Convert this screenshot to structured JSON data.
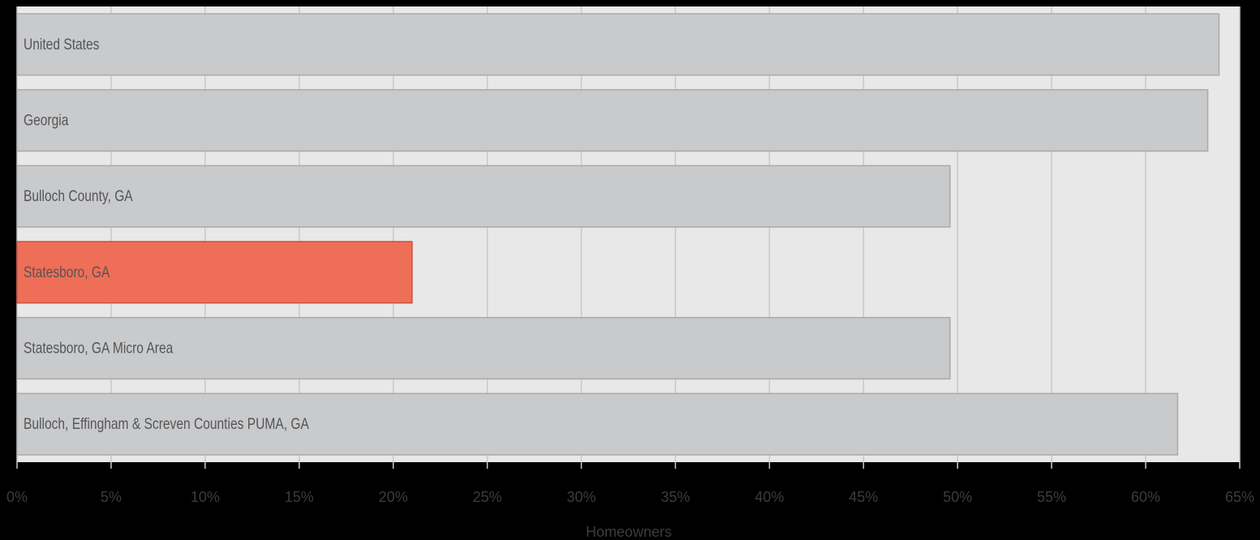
{
  "chart_data": {
    "type": "barh",
    "xlabel": "Homeowners",
    "categories": [
      "United States",
      "Georgia",
      "Bulloch County, GA",
      "Statesboro, GA",
      "Statesboro, GA Micro Area",
      "Bulloch, Effingham & Screven Counties PUMA, GA"
    ],
    "values": [
      63.9,
      63.3,
      49.6,
      21.0,
      49.6,
      61.7
    ],
    "colors": [
      "#c9cacc",
      "#c9cacc",
      "#c9cacc",
      "#ef6e57",
      "#c9cacc",
      "#c9cacc"
    ],
    "xlim": [
      0,
      65
    ],
    "xticks": [
      {
        "value": 0,
        "label": "0%"
      },
      {
        "value": 5,
        "label": "5%"
      },
      {
        "value": 10,
        "label": "10%"
      },
      {
        "value": 15,
        "label": "15%"
      },
      {
        "value": 20,
        "label": "20%"
      },
      {
        "value": 25,
        "label": "25%"
      },
      {
        "value": 30,
        "label": "30%"
      },
      {
        "value": 35,
        "label": "35%"
      },
      {
        "value": 40,
        "label": "40%"
      },
      {
        "value": 45,
        "label": "45%"
      },
      {
        "value": 50,
        "label": "50%"
      },
      {
        "value": 55,
        "label": "55%"
      },
      {
        "value": 60,
        "label": "60%"
      },
      {
        "value": 65,
        "label": "65%"
      }
    ],
    "grid": true
  }
}
